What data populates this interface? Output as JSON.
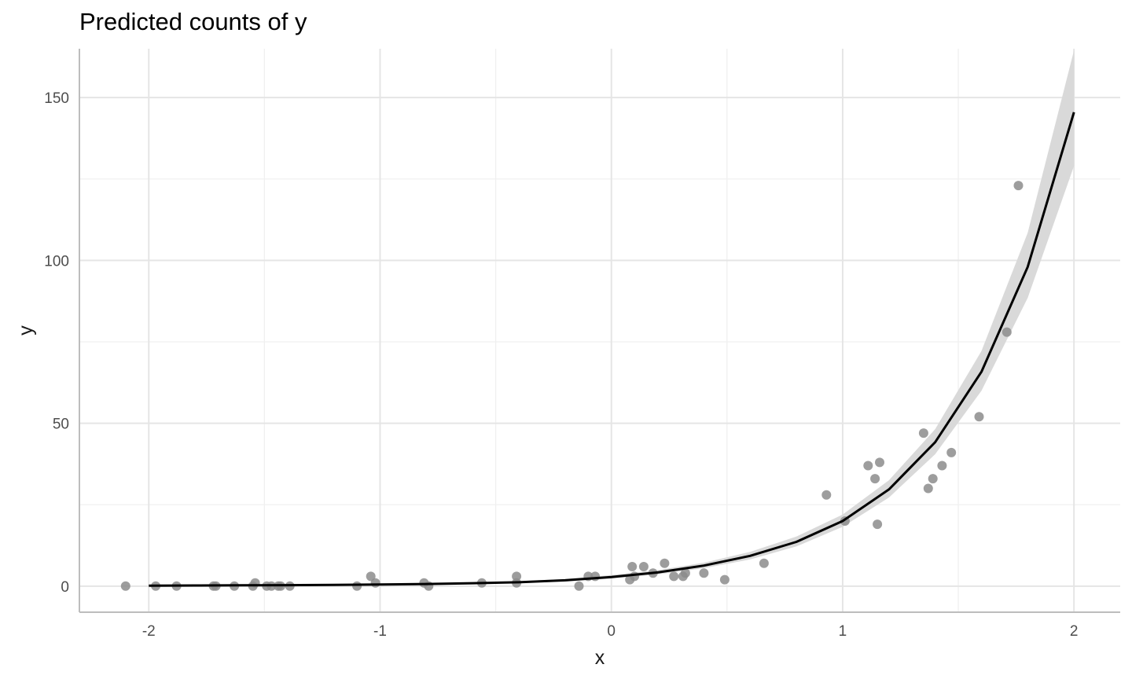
{
  "chart_data": {
    "type": "scatter",
    "title": "Predicted counts of y",
    "xlabel": "x",
    "ylabel": "y",
    "xlim": [
      -2.3,
      2.2
    ],
    "ylim": [
      -8,
      165
    ],
    "x_ticks": [
      -2,
      -1,
      0,
      1,
      2
    ],
    "x_tick_labels": [
      "-2",
      "-1",
      "0",
      "1",
      "2"
    ],
    "y_ticks": [
      0,
      50,
      100,
      150
    ],
    "y_tick_labels": [
      "0",
      "50",
      "100",
      "150"
    ],
    "grid": true,
    "legend": "none",
    "points_color": "#8c8c8c",
    "line_color": "#000000",
    "ribbon_color": "#d9d9d9",
    "points": [
      {
        "x": -2.1,
        "y": 0
      },
      {
        "x": -1.97,
        "y": 0
      },
      {
        "x": -1.88,
        "y": 0
      },
      {
        "x": -1.72,
        "y": 0
      },
      {
        "x": -1.71,
        "y": 0
      },
      {
        "x": -1.63,
        "y": 0
      },
      {
        "x": -1.55,
        "y": 0
      },
      {
        "x": -1.54,
        "y": 1
      },
      {
        "x": -1.49,
        "y": 0
      },
      {
        "x": -1.47,
        "y": 0
      },
      {
        "x": -1.44,
        "y": 0
      },
      {
        "x": -1.43,
        "y": 0
      },
      {
        "x": -1.39,
        "y": 0
      },
      {
        "x": -1.1,
        "y": 0
      },
      {
        "x": -1.04,
        "y": 3
      },
      {
        "x": -1.02,
        "y": 1
      },
      {
        "x": -0.81,
        "y": 1
      },
      {
        "x": -0.79,
        "y": 0
      },
      {
        "x": -0.56,
        "y": 1
      },
      {
        "x": -0.41,
        "y": 1
      },
      {
        "x": -0.41,
        "y": 3
      },
      {
        "x": -0.14,
        "y": 0
      },
      {
        "x": -0.1,
        "y": 3
      },
      {
        "x": -0.07,
        "y": 3
      },
      {
        "x": 0.08,
        "y": 2
      },
      {
        "x": 0.09,
        "y": 6
      },
      {
        "x": 0.1,
        "y": 3
      },
      {
        "x": 0.14,
        "y": 6
      },
      {
        "x": 0.18,
        "y": 4
      },
      {
        "x": 0.23,
        "y": 7
      },
      {
        "x": 0.27,
        "y": 3
      },
      {
        "x": 0.31,
        "y": 3
      },
      {
        "x": 0.32,
        "y": 4
      },
      {
        "x": 0.4,
        "y": 4
      },
      {
        "x": 0.49,
        "y": 2
      },
      {
        "x": 0.66,
        "y": 7
      },
      {
        "x": 0.93,
        "y": 28
      },
      {
        "x": 1.01,
        "y": 20
      },
      {
        "x": 1.11,
        "y": 37
      },
      {
        "x": 1.14,
        "y": 33
      },
      {
        "x": 1.15,
        "y": 19
      },
      {
        "x": 1.16,
        "y": 38
      },
      {
        "x": 1.35,
        "y": 47
      },
      {
        "x": 1.37,
        "y": 30
      },
      {
        "x": 1.39,
        "y": 33
      },
      {
        "x": 1.43,
        "y": 37
      },
      {
        "x": 1.47,
        "y": 41
      },
      {
        "x": 1.59,
        "y": 52
      },
      {
        "x": 1.71,
        "y": 78
      },
      {
        "x": 1.76,
        "y": 123
      }
    ],
    "fit": {
      "x": [
        -2.0,
        -1.8,
        -1.6,
        -1.4,
        -1.2,
        -1.0,
        -0.8,
        -0.6,
        -0.4,
        -0.2,
        0.0,
        0.2,
        0.4,
        0.6,
        0.8,
        1.0,
        1.2,
        1.4,
        1.6,
        1.8,
        2.0
      ],
      "y": [
        0.15,
        0.2,
        0.25,
        0.3,
        0.4,
        0.5,
        0.65,
        0.9,
        1.2,
        1.8,
        2.8,
        4.2,
        6.3,
        9.3,
        13.6,
        20.0,
        29.7,
        44.2,
        65.8,
        98.0,
        145.5
      ],
      "lower": [
        0.1,
        0.14,
        0.18,
        0.23,
        0.3,
        0.38,
        0.5,
        0.7,
        0.95,
        1.4,
        2.3,
        3.6,
        5.5,
        8.2,
        12.2,
        18.2,
        27.2,
        40.5,
        60.0,
        88.5,
        129.0
      ],
      "upper": [
        0.22,
        0.28,
        0.34,
        0.4,
        0.5,
        0.62,
        0.8,
        1.1,
        1.5,
        2.2,
        3.4,
        4.9,
        7.2,
        10.5,
        15.2,
        22.0,
        32.5,
        48.2,
        72.2,
        108.5,
        164.5
      ]
    }
  }
}
